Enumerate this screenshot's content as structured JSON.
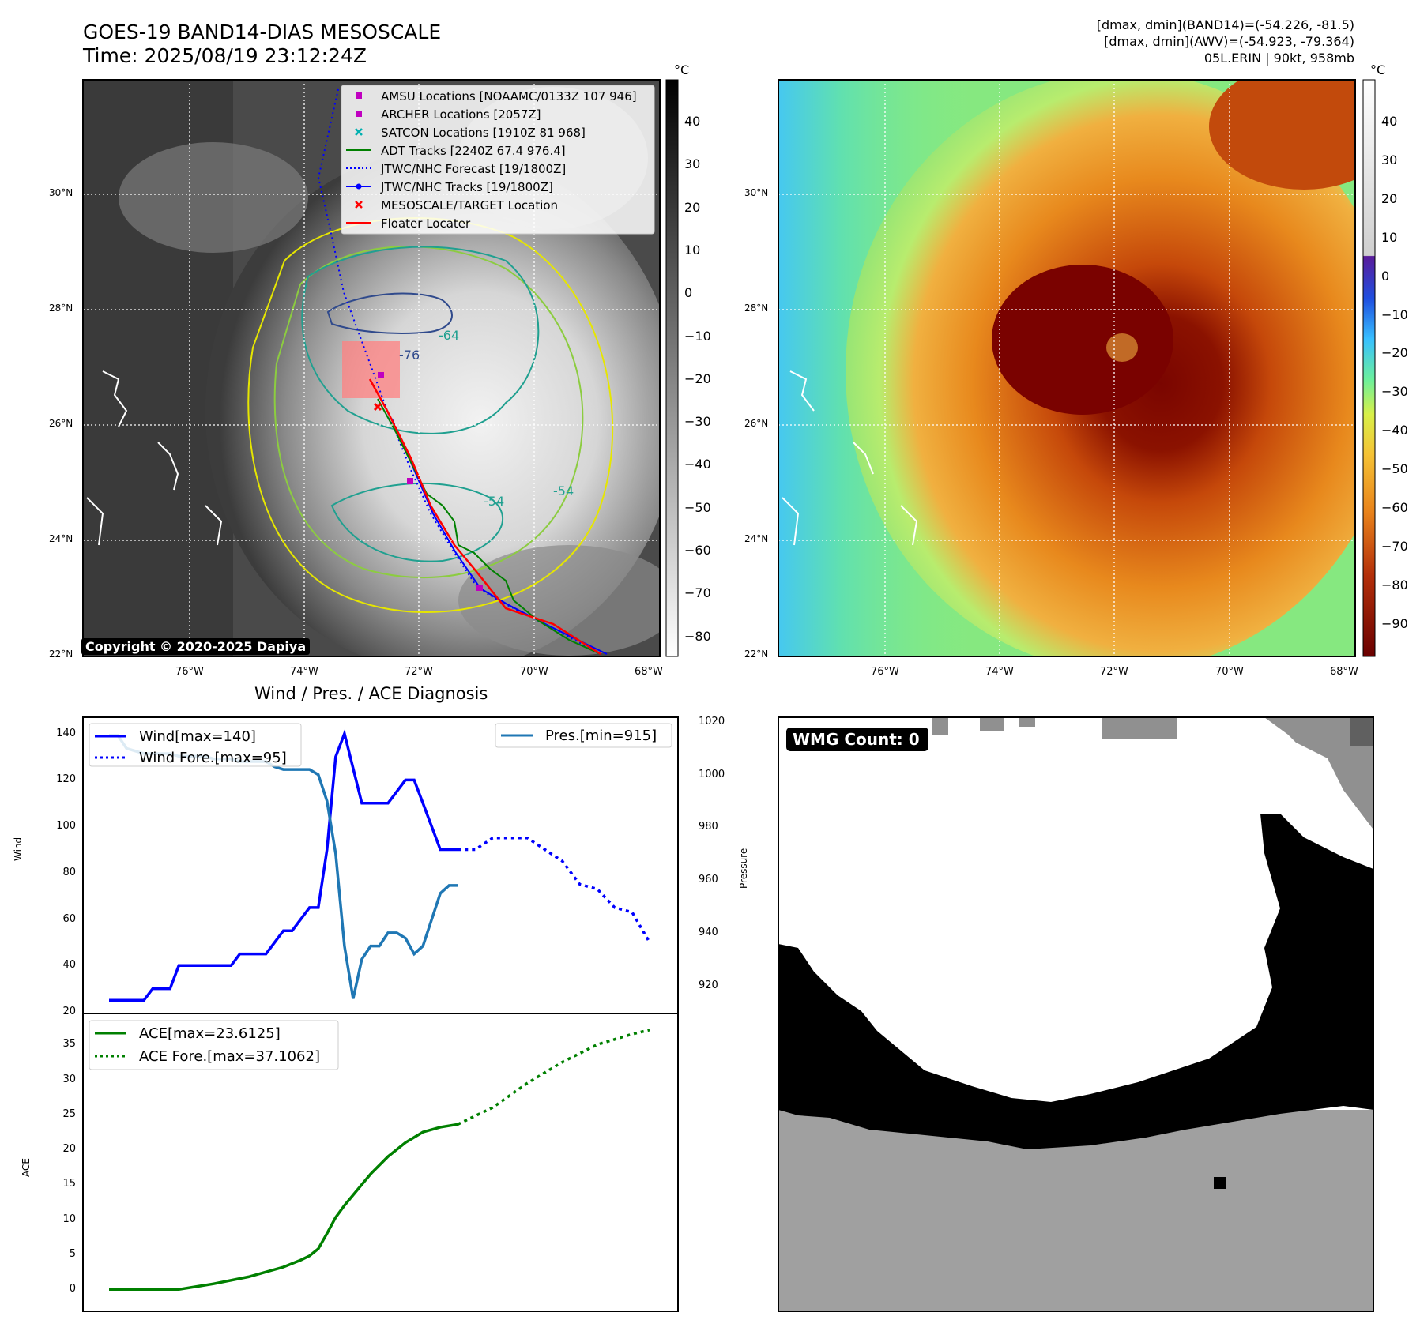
{
  "header": {
    "title_line1": "GOES-19 BAND14-DIAS MESOSCALE",
    "title_line2": "Time: 2025/08/19 23:12:24Z",
    "stats_line1": "[dmax, dmin](BAND14)=(-54.226, -81.5)",
    "stats_line2": "[dmax, dmin](AWV)=(-54.923, -79.364)",
    "stats_line3": "05L.ERIN | 90kt, 958mb"
  },
  "copyright": "Copyright © 2020-2025 Dapiya",
  "map_axes": {
    "lat_labels": [
      "30°N",
      "28°N",
      "26°N",
      "24°N",
      "22°N"
    ],
    "lon_labels": [
      "76°W",
      "74°W",
      "72°W",
      "70°W",
      "68°W"
    ]
  },
  "colorbar_left": {
    "unit": "°C",
    "ticks": [
      "40",
      "30",
      "20",
      "10",
      "0",
      "−10",
      "−20",
      "−30",
      "−40",
      "−50",
      "−60",
      "−70",
      "−80"
    ]
  },
  "colorbar_right": {
    "unit": "°C",
    "ticks": [
      "40",
      "30",
      "20",
      "10",
      "0",
      "−10",
      "−20",
      "−30",
      "−40",
      "−50",
      "−60",
      "−70",
      "−80",
      "−90"
    ]
  },
  "map_legend": [
    {
      "label": "AMSU Locations [NOAAMC/0133Z 107 946]",
      "marker": "square",
      "color": "#c000c0"
    },
    {
      "label": "ARCHER Locations [2057Z]",
      "marker": "square",
      "color": "#c000c0"
    },
    {
      "label": "SATCON Locations [1910Z 81 968]",
      "marker": "x",
      "color": "#00b0b0"
    },
    {
      "label": "ADT Tracks [2240Z 67.4 976.4]",
      "marker": "line",
      "color": "#008000"
    },
    {
      "label": "JTWC/NHC Forecast [19/1800Z]",
      "marker": "dotted",
      "color": "#0000ff"
    },
    {
      "label": "JTWC/NHC Tracks [19/1800Z]",
      "marker": "dotline",
      "color": "#0000ff"
    },
    {
      "label": "MESOSCALE/TARGET Location",
      "marker": "x",
      "color": "#ff0000"
    },
    {
      "label": "Floater Locater",
      "marker": "line",
      "color": "#ff0000"
    }
  ],
  "contour_labels": [
    "-76",
    "-64",
    "-54",
    "-54"
  ],
  "diag_title": "Wind / Pres. / ACE Diagnosis",
  "wmg_label": "WMG Count: 0",
  "chart_data": [
    {
      "type": "line",
      "title": "Wind / Pres. / ACE Diagnosis",
      "ylabel": "Wind",
      "y2label": "Pressure",
      "ylim": [
        20,
        145
      ],
      "y2lim": [
        910,
        1020
      ],
      "yticks": [
        "20",
        "40",
        "60",
        "80",
        "100",
        "120",
        "140"
      ],
      "y2ticks": [
        "920",
        "940",
        "960",
        "980",
        "1000",
        "1020"
      ],
      "legend": [
        "Wind[max=140]",
        "Wind Fore.[max=95]",
        "Pres.[min=915]"
      ],
      "series": [
        {
          "name": "Wind[max=140]",
          "color": "#0000ff",
          "style": "solid",
          "x": [
            0,
            5,
            10,
            15,
            20,
            25,
            30,
            35,
            40,
            45,
            50,
            55,
            60,
            65,
            70,
            75,
            80,
            85,
            90,
            95,
            100,
            105,
            110,
            115,
            120,
            125,
            130,
            135,
            140,
            145,
            150,
            155,
            160,
            165,
            170,
            175,
            180,
            185,
            190,
            195,
            200
          ],
          "values": [
            25,
            25,
            25,
            25,
            25,
            30,
            30,
            30,
            40,
            40,
            40,
            40,
            40,
            40,
            40,
            45,
            45,
            45,
            45,
            50,
            55,
            55,
            60,
            65,
            65,
            90,
            130,
            140,
            125,
            110,
            110,
            110,
            110,
            115,
            120,
            120,
            110,
            100,
            90,
            90,
            90
          ]
        },
        {
          "name": "Wind Fore.[max=95]",
          "color": "#0000ff",
          "style": "dotted",
          "x": [
            200,
            210,
            220,
            230,
            240,
            250,
            260,
            270,
            280,
            290,
            300,
            310
          ],
          "values": [
            90,
            90,
            95,
            95,
            95,
            90,
            85,
            75,
            73,
            65,
            63,
            50
          ]
        },
        {
          "name": "Pres.[min=915]",
          "color": "#1f77b4",
          "style": "solid",
          "axis": "right",
          "x": [
            0,
            5,
            10,
            15,
            20,
            25,
            30,
            35,
            40,
            45,
            50,
            55,
            60,
            65,
            70,
            75,
            80,
            85,
            90,
            95,
            100,
            105,
            110,
            115,
            120,
            125,
            130,
            135,
            140,
            145,
            150,
            155,
            160,
            165,
            170,
            175,
            180,
            185,
            190,
            195,
            200
          ],
          "values": [
            1015,
            1015,
            1010,
            1009,
            1008,
            1008,
            1008,
            1008,
            1007,
            1007,
            1007,
            1007,
            1006,
            1006,
            1006,
            1005,
            1005,
            1005,
            1005,
            1003,
            1002,
            1002,
            1002,
            1002,
            1000,
            990,
            970,
            935,
            915,
            930,
            935,
            935,
            940,
            940,
            938,
            932,
            935,
            945,
            955,
            958,
            958
          ]
        }
      ]
    },
    {
      "type": "line",
      "ylabel": "ACE",
      "ylim": [
        -2,
        39
      ],
      "yticks": [
        "0",
        "5",
        "10",
        "15",
        "20",
        "25",
        "30",
        "35"
      ],
      "legend": [
        "ACE[max=23.6125]",
        "ACE Fore.[max=37.1062]"
      ],
      "series": [
        {
          "name": "ACE[max=23.6125]",
          "color": "#008000",
          "style": "solid",
          "x": [
            0,
            20,
            40,
            60,
            80,
            100,
            110,
            115,
            120,
            125,
            130,
            135,
            140,
            145,
            150,
            160,
            170,
            180,
            190,
            200
          ],
          "values": [
            0,
            0,
            0,
            0.8,
            1.8,
            3.2,
            4.2,
            4.8,
            5.8,
            8.0,
            10.3,
            12.0,
            13.5,
            15.0,
            16.5,
            19.0,
            21.0,
            22.5,
            23.2,
            23.6
          ]
        },
        {
          "name": "ACE Fore.[max=37.1062]",
          "color": "#008000",
          "style": "dotted",
          "x": [
            200,
            220,
            240,
            260,
            280,
            300,
            310
          ],
          "values": [
            23.6,
            26.0,
            29.5,
            32.5,
            35.0,
            36.5,
            37.1
          ]
        }
      ]
    }
  ]
}
